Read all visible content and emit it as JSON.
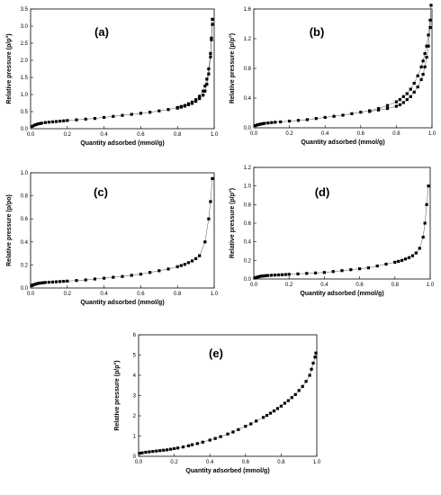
{
  "chart_data": [
    {
      "type": "scatter",
      "panel_label": "(a)",
      "xlabel": "Quantity adsorbed (mmol/g)",
      "ylabel": "Relative pressure (p/p°)",
      "xlim": [
        0,
        1.0
      ],
      "ylim": [
        0,
        3.5
      ],
      "xticks": [
        "0.0",
        "0.2",
        "0.4",
        "0.6",
        "0.8",
        "1.0"
      ],
      "yticks": [
        "0.0",
        "0.5",
        "1.0",
        "1.5",
        "2.0",
        "2.5",
        "3.0",
        "3.5"
      ],
      "grid": false,
      "series": [
        {
          "marker": "square",
          "x": [
            0.01,
            0.02,
            0.03,
            0.04,
            0.05,
            0.06,
            0.08,
            0.1,
            0.12,
            0.14,
            0.16,
            0.18,
            0.2,
            0.25,
            0.3,
            0.35,
            0.4,
            0.45,
            0.5,
            0.55,
            0.6,
            0.65,
            0.7,
            0.75,
            0.8,
            0.82,
            0.84,
            0.86,
            0.88,
            0.9,
            0.92,
            0.94,
            0.95,
            0.96,
            0.97,
            0.98,
            0.985,
            0.99,
            0.99,
            0.985,
            0.98,
            0.97,
            0.96,
            0.95,
            0.94,
            0.92,
            0.9,
            0.88,
            0.86,
            0.84,
            0.82,
            0.8
          ],
          "y": [
            0.07,
            0.1,
            0.12,
            0.14,
            0.15,
            0.16,
            0.18,
            0.19,
            0.2,
            0.21,
            0.22,
            0.23,
            0.24,
            0.26,
            0.28,
            0.3,
            0.33,
            0.36,
            0.39,
            0.42,
            0.45,
            0.48,
            0.52,
            0.56,
            0.62,
            0.65,
            0.68,
            0.73,
            0.78,
            0.85,
            0.95,
            1.1,
            1.25,
            1.45,
            1.75,
            2.2,
            2.65,
            3.2,
            3.05,
            2.6,
            2.1,
            1.6,
            1.3,
            1.1,
            0.98,
            0.88,
            0.8,
            0.74,
            0.7,
            0.66,
            0.63,
            0.6
          ]
        }
      ]
    },
    {
      "type": "scatter",
      "panel_label": "(b)",
      "xlabel": "Quantity adsorbed (mmol/g)",
      "ylabel": "Relative pressure (p/p°)",
      "xlim": [
        0,
        1.0
      ],
      "ylim": [
        0,
        1.6
      ],
      "xticks": [
        "0.0",
        "0.2",
        "0.4",
        "0.6",
        "0.8",
        "1.0"
      ],
      "yticks": [
        "0.0",
        "0.4",
        "0.8",
        "1.2",
        "1.6"
      ],
      "grid": false,
      "series": [
        {
          "marker": "square",
          "x": [
            0.01,
            0.02,
            0.03,
            0.04,
            0.05,
            0.06,
            0.08,
            0.1,
            0.12,
            0.15,
            0.2,
            0.25,
            0.3,
            0.35,
            0.4,
            0.45,
            0.5,
            0.55,
            0.6,
            0.65,
            0.7,
            0.75,
            0.8,
            0.82,
            0.84,
            0.86,
            0.88,
            0.9,
            0.92,
            0.94,
            0.95,
            0.96,
            0.97,
            0.98,
            0.99,
            0.995,
            0.99,
            0.98,
            0.97,
            0.96,
            0.95,
            0.94,
            0.92,
            0.9,
            0.88,
            0.86,
            0.84,
            0.82,
            0.8,
            0.75,
            0.7,
            0.65
          ],
          "y": [
            0.03,
            0.04,
            0.045,
            0.05,
            0.055,
            0.06,
            0.065,
            0.07,
            0.075,
            0.08,
            0.09,
            0.1,
            0.11,
            0.125,
            0.14,
            0.155,
            0.17,
            0.19,
            0.21,
            0.23,
            0.26,
            0.3,
            0.35,
            0.38,
            0.42,
            0.46,
            0.52,
            0.6,
            0.7,
            0.82,
            0.9,
            1.0,
            1.1,
            1.25,
            1.45,
            1.65,
            1.35,
            1.1,
            0.95,
            0.82,
            0.72,
            0.65,
            0.55,
            0.48,
            0.42,
            0.38,
            0.34,
            0.31,
            0.29,
            0.26,
            0.24,
            0.22
          ]
        }
      ]
    },
    {
      "type": "scatter",
      "panel_label": "(c)",
      "xlabel": "Quantity adsorbed (mmol/g)",
      "ylabel": "Relative pressure (p/po)",
      "xlim": [
        0,
        1.0
      ],
      "ylim": [
        0,
        1.0
      ],
      "xticks": [
        "0.0",
        "0.2",
        "0.4",
        "0.6",
        "0.8",
        "1.0"
      ],
      "yticks": [
        "0.0",
        "0.2",
        "0.4",
        "0.6",
        "0.8",
        "1.0"
      ],
      "grid": false,
      "series": [
        {
          "marker": "square",
          "x": [
            0.005,
            0.01,
            0.02,
            0.03,
            0.04,
            0.05,
            0.06,
            0.07,
            0.08,
            0.1,
            0.12,
            0.14,
            0.16,
            0.18,
            0.2,
            0.25,
            0.3,
            0.35,
            0.4,
            0.45,
            0.5,
            0.55,
            0.6,
            0.65,
            0.7,
            0.75,
            0.8,
            0.82,
            0.84,
            0.86,
            0.88,
            0.9,
            0.92,
            0.95,
            0.97,
            0.98,
            0.99
          ],
          "y": [
            0.02,
            0.025,
            0.03,
            0.035,
            0.04,
            0.042,
            0.044,
            0.046,
            0.048,
            0.05,
            0.052,
            0.054,
            0.056,
            0.058,
            0.06,
            0.065,
            0.07,
            0.078,
            0.085,
            0.093,
            0.1,
            0.11,
            0.12,
            0.135,
            0.15,
            0.165,
            0.185,
            0.195,
            0.205,
            0.22,
            0.235,
            0.255,
            0.28,
            0.4,
            0.6,
            0.75,
            0.95
          ]
        }
      ]
    },
    {
      "type": "scatter",
      "panel_label": "(d)",
      "xlabel": "Quantity adsorbed (mmol/g)",
      "ylabel": "Relative pressure (p/p°)",
      "xlim": [
        0,
        1.0
      ],
      "ylim": [
        0,
        1.2
      ],
      "xticks": [
        "0.0",
        "0.2",
        "0.4",
        "0.6",
        "0.8",
        "1.0"
      ],
      "yticks": [
        "0.0",
        "0.2",
        "0.4",
        "0.6",
        "0.8",
        "1.0",
        "1.2"
      ],
      "grid": false,
      "series": [
        {
          "marker": "square",
          "x": [
            0.005,
            0.01,
            0.02,
            0.03,
            0.04,
            0.05,
            0.06,
            0.07,
            0.08,
            0.1,
            0.12,
            0.14,
            0.16,
            0.18,
            0.2,
            0.25,
            0.3,
            0.35,
            0.4,
            0.45,
            0.5,
            0.55,
            0.6,
            0.65,
            0.7,
            0.75,
            0.8,
            0.82,
            0.84,
            0.86,
            0.88,
            0.9,
            0.92,
            0.94,
            0.96,
            0.97,
            0.98,
            0.99
          ],
          "y": [
            0.01,
            0.015,
            0.02,
            0.025,
            0.03,
            0.032,
            0.034,
            0.036,
            0.038,
            0.04,
            0.042,
            0.044,
            0.046,
            0.048,
            0.05,
            0.055,
            0.06,
            0.065,
            0.07,
            0.08,
            0.09,
            0.1,
            0.11,
            0.12,
            0.14,
            0.16,
            0.18,
            0.19,
            0.2,
            0.215,
            0.23,
            0.25,
            0.28,
            0.33,
            0.45,
            0.6,
            0.8,
            1.0
          ]
        }
      ]
    },
    {
      "type": "scatter",
      "panel_label": "(e)",
      "xlabel": "Quantity adsorbed (mmol/g)",
      "ylabel": "Relative pressure (p/p°)",
      "xlim": [
        0,
        1.0
      ],
      "ylim": [
        0,
        6
      ],
      "xticks": [
        "0.0",
        "0.2",
        "0.4",
        "0.6",
        "0.8",
        "1.0"
      ],
      "yticks": [
        "0",
        "1",
        "2",
        "3",
        "4",
        "5",
        "6"
      ],
      "grid": false,
      "series": [
        {
          "marker": "square",
          "x": [
            0.005,
            0.02,
            0.04,
            0.06,
            0.08,
            0.1,
            0.12,
            0.14,
            0.16,
            0.18,
            0.2,
            0.22,
            0.25,
            0.28,
            0.3,
            0.33,
            0.36,
            0.4,
            0.43,
            0.46,
            0.5,
            0.53,
            0.56,
            0.6,
            0.63,
            0.66,
            0.7,
            0.72,
            0.74,
            0.76,
            0.78,
            0.8,
            0.82,
            0.84,
            0.86,
            0.88,
            0.9,
            0.92,
            0.94,
            0.96,
            0.97,
            0.98,
            0.99,
            0.995
          ],
          "y": [
            0.15,
            0.17,
            0.2,
            0.22,
            0.24,
            0.26,
            0.28,
            0.3,
            0.32,
            0.35,
            0.38,
            0.41,
            0.46,
            0.52,
            0.57,
            0.63,
            0.7,
            0.8,
            0.88,
            0.97,
            1.1,
            1.2,
            1.32,
            1.48,
            1.6,
            1.74,
            1.92,
            2.02,
            2.13,
            2.24,
            2.36,
            2.48,
            2.62,
            2.75,
            2.9,
            3.05,
            3.25,
            3.45,
            3.7,
            4.0,
            4.3,
            4.6,
            4.9,
            5.1
          ]
        }
      ]
    }
  ]
}
